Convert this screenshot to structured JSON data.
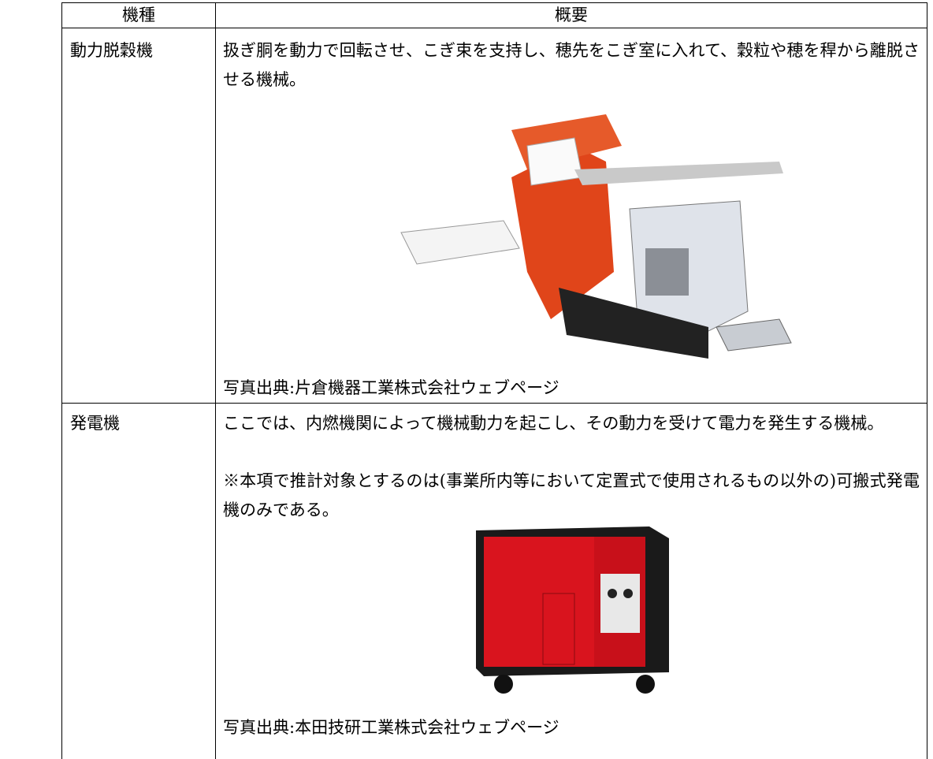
{
  "table": {
    "header": [
      "機種",
      "概要"
    ],
    "rows": [
      {
        "name": "動力脱穀機",
        "description": "扱ぎ胴を動力で回転させ、こぎ束を支持し、穂先をこぎ室に入れて、穀粒や穂を稈から離脱させる機械。",
        "caption": "写真出典:片倉機器工業株式会社ウェブページ"
      },
      {
        "name": "発電機",
        "description": "ここでは、内燃機関によって機械動力を起こし、その動力を受けて電力を発生する機械。",
        "note": "※本項で推計対象とするのは(事業所内等において定置式で使用されるもの以外の)可搬式発電機のみである。",
        "caption": "写真出典:本田技研工業株式会社ウェブページ"
      }
    ]
  }
}
